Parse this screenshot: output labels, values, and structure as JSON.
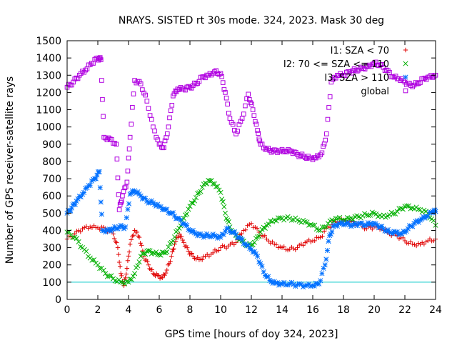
{
  "chart_data": {
    "type": "scatter",
    "title": "NRAYS. SISTED rt 30s mode. 324, 2023. Mask 30 deg",
    "xlabel": "GPS time [hours of doy 324, 2023]",
    "ylabel": "Number of GPS receiver-satellite rays",
    "xlim": [
      0,
      24
    ],
    "ylim": [
      0,
      1500
    ],
    "x_ticks": [
      0,
      2,
      4,
      6,
      8,
      10,
      12,
      14,
      16,
      18,
      20,
      22,
      24
    ],
    "y_ticks": [
      0,
      100,
      200,
      300,
      400,
      500,
      600,
      700,
      800,
      900,
      1000,
      1100,
      1200,
      1300,
      1400,
      1500
    ],
    "reference_line": {
      "y": 100,
      "color": "#00c8c8"
    },
    "series": [
      {
        "name": "I1: SZA < 70",
        "marker": "+",
        "color": "#e00000",
        "points": [
          [
            0,
            350
          ],
          [
            0.5,
            380
          ],
          [
            1,
            410
          ],
          [
            1.5,
            420
          ],
          [
            2,
            415
          ],
          [
            2.5,
            410
          ],
          [
            3,
            380
          ],
          [
            3.3,
            300
          ],
          [
            3.5,
            150
          ],
          [
            3.7,
            80
          ],
          [
            3.9,
            180
          ],
          [
            4.1,
            320
          ],
          [
            4.4,
            400
          ],
          [
            4.7,
            360
          ],
          [
            5,
            250
          ],
          [
            5.3,
            200
          ],
          [
            5.6,
            150
          ],
          [
            5.9,
            140
          ],
          [
            6.2,
            125
          ],
          [
            6.5,
            170
          ],
          [
            6.8,
            250
          ],
          [
            7,
            320
          ],
          [
            7.3,
            380
          ],
          [
            7.6,
            330
          ],
          [
            7.9,
            280
          ],
          [
            8.2,
            250
          ],
          [
            8.6,
            230
          ],
          [
            9,
            250
          ],
          [
            9.5,
            270
          ],
          [
            10,
            300
          ],
          [
            10.5,
            310
          ],
          [
            11,
            330
          ],
          [
            11.5,
            400
          ],
          [
            12,
            440
          ],
          [
            12.5,
            390
          ],
          [
            13,
            350
          ],
          [
            13.5,
            320
          ],
          [
            14,
            300
          ],
          [
            14.5,
            290
          ],
          [
            15,
            300
          ],
          [
            15.5,
            330
          ],
          [
            16,
            340
          ],
          [
            16.5,
            360
          ],
          [
            17,
            420
          ],
          [
            17.5,
            450
          ],
          [
            18,
            460
          ],
          [
            18.5,
            450
          ],
          [
            19,
            440
          ],
          [
            19.5,
            410
          ],
          [
            20,
            420
          ],
          [
            20.5,
            410
          ],
          [
            21,
            380
          ],
          [
            21.5,
            370
          ],
          [
            22,
            340
          ],
          [
            22.5,
            320
          ],
          [
            23,
            320
          ],
          [
            23.5,
            340
          ],
          [
            24,
            350
          ]
        ]
      },
      {
        "name": "I2: 70 <= SZA <= 110",
        "marker": "x",
        "color": "#00b000",
        "points": [
          [
            0,
            390
          ],
          [
            0.5,
            360
          ],
          [
            1,
            300
          ],
          [
            1.5,
            240
          ],
          [
            2,
            200
          ],
          [
            2.5,
            150
          ],
          [
            3,
            120
          ],
          [
            3.5,
            100
          ],
          [
            4,
            100
          ],
          [
            4.4,
            150
          ],
          [
            4.8,
            250
          ],
          [
            5.2,
            280
          ],
          [
            5.6,
            270
          ],
          [
            6,
            260
          ],
          [
            6.4,
            270
          ],
          [
            6.8,
            330
          ],
          [
            7.2,
            400
          ],
          [
            7.6,
            470
          ],
          [
            8,
            540
          ],
          [
            8.4,
            590
          ],
          [
            8.8,
            650
          ],
          [
            9.2,
            690
          ],
          [
            9.6,
            670
          ],
          [
            10,
            620
          ],
          [
            10.3,
            500
          ],
          [
            10.6,
            420
          ],
          [
            11,
            370
          ],
          [
            11.4,
            340
          ],
          [
            11.8,
            310
          ],
          [
            12.2,
            330
          ],
          [
            12.6,
            390
          ],
          [
            13,
            430
          ],
          [
            13.5,
            460
          ],
          [
            14,
            470
          ],
          [
            14.5,
            470
          ],
          [
            15,
            460
          ],
          [
            15.5,
            450
          ],
          [
            16,
            430
          ],
          [
            16.5,
            400
          ],
          [
            17,
            440
          ],
          [
            17.5,
            470
          ],
          [
            18,
            460
          ],
          [
            18.5,
            470
          ],
          [
            19,
            480
          ],
          [
            19.5,
            490
          ],
          [
            20,
            500
          ],
          [
            20.5,
            480
          ],
          [
            21,
            490
          ],
          [
            21.5,
            510
          ],
          [
            22,
            540
          ],
          [
            22.5,
            530
          ],
          [
            23,
            520
          ],
          [
            23.5,
            500
          ],
          [
            24,
            430
          ]
        ]
      },
      {
        "name": "I3: SZA > 110",
        "marker": "*",
        "color": "#0070ff",
        "points": [
          [
            0,
            500
          ],
          [
            0.3,
            530
          ],
          [
            0.6,
            570
          ],
          [
            1,
            610
          ],
          [
            1.4,
            660
          ],
          [
            1.8,
            700
          ],
          [
            2.1,
            740
          ],
          [
            2.3,
            400
          ],
          [
            2.7,
            400
          ],
          [
            3,
            410
          ],
          [
            3.4,
            420
          ],
          [
            3.8,
            420
          ],
          [
            4.1,
            610
          ],
          [
            4.4,
            630
          ],
          [
            4.8,
            600
          ],
          [
            5.2,
            570
          ],
          [
            5.6,
            560
          ],
          [
            6,
            540
          ],
          [
            6.4,
            520
          ],
          [
            6.8,
            500
          ],
          [
            7.2,
            470
          ],
          [
            7.6,
            440
          ],
          [
            8,
            400
          ],
          [
            8.4,
            380
          ],
          [
            8.8,
            370
          ],
          [
            9.2,
            370
          ],
          [
            9.6,
            370
          ],
          [
            10,
            360
          ],
          [
            10.4,
            410
          ],
          [
            10.8,
            390
          ],
          [
            11.2,
            360
          ],
          [
            11.6,
            320
          ],
          [
            12,
            290
          ],
          [
            12.4,
            250
          ],
          [
            12.8,
            160
          ],
          [
            13.2,
            110
          ],
          [
            13.6,
            95
          ],
          [
            14,
            90
          ],
          [
            14.5,
            90
          ],
          [
            15,
            85
          ],
          [
            15.5,
            80
          ],
          [
            16,
            80
          ],
          [
            16.4,
            90
          ],
          [
            16.8,
            200
          ],
          [
            17.1,
            370
          ],
          [
            17.4,
            430
          ],
          [
            17.8,
            440
          ],
          [
            18.2,
            440
          ],
          [
            18.6,
            430
          ],
          [
            19,
            440
          ],
          [
            19.4,
            430
          ],
          [
            19.8,
            440
          ],
          [
            20.2,
            430
          ],
          [
            20.6,
            410
          ],
          [
            21,
            390
          ],
          [
            21.4,
            390
          ],
          [
            21.8,
            380
          ],
          [
            22.2,
            410
          ],
          [
            22.6,
            440
          ],
          [
            23,
            460
          ],
          [
            23.4,
            480
          ],
          [
            23.8,
            510
          ],
          [
            24,
            510
          ]
        ]
      },
      {
        "name": "global",
        "marker": "square",
        "color": "#b000e0",
        "points": [
          [
            0,
            1230
          ],
          [
            0.4,
            1260
          ],
          [
            0.8,
            1300
          ],
          [
            1.2,
            1330
          ],
          [
            1.6,
            1370
          ],
          [
            2,
            1400
          ],
          [
            2.2,
            1390
          ],
          [
            2.4,
            940
          ],
          [
            2.8,
            930
          ],
          [
            3.2,
            900
          ],
          [
            3.4,
            520
          ],
          [
            3.6,
            600
          ],
          [
            3.9,
            680
          ],
          [
            4.1,
            940
          ],
          [
            4.4,
            1270
          ],
          [
            4.8,
            1250
          ],
          [
            5.2,
            1150
          ],
          [
            5.6,
            1000
          ],
          [
            6,
            900
          ],
          [
            6.3,
            880
          ],
          [
            6.6,
            1000
          ],
          [
            6.9,
            1180
          ],
          [
            7.2,
            1220
          ],
          [
            7.6,
            1220
          ],
          [
            8,
            1230
          ],
          [
            8.4,
            1250
          ],
          [
            8.8,
            1290
          ],
          [
            9.2,
            1300
          ],
          [
            9.6,
            1320
          ],
          [
            10,
            1310
          ],
          [
            10.3,
            1200
          ],
          [
            10.6,
            1050
          ],
          [
            11,
            960
          ],
          [
            11.4,
            1050
          ],
          [
            11.8,
            1190
          ],
          [
            12.1,
            1100
          ],
          [
            12.4,
            980
          ],
          [
            12.6,
            900
          ],
          [
            13,
            870
          ],
          [
            13.4,
            860
          ],
          [
            13.8,
            860
          ],
          [
            14.2,
            860
          ],
          [
            14.6,
            860
          ],
          [
            15,
            840
          ],
          [
            15.4,
            830
          ],
          [
            15.8,
            820
          ],
          [
            16.2,
            820
          ],
          [
            16.6,
            850
          ],
          [
            16.9,
            960
          ],
          [
            17.2,
            1260
          ],
          [
            17.6,
            1300
          ],
          [
            18,
            1300
          ],
          [
            18.4,
            1320
          ],
          [
            18.8,
            1330
          ],
          [
            19.2,
            1340
          ],
          [
            19.6,
            1350
          ],
          [
            20,
            1370
          ],
          [
            20.4,
            1360
          ],
          [
            20.8,
            1330
          ],
          [
            21.2,
            1290
          ],
          [
            21.6,
            1280
          ],
          [
            22,
            1260
          ],
          [
            22.4,
            1240
          ],
          [
            22.8,
            1250
          ],
          [
            23.2,
            1280
          ],
          [
            23.6,
            1290
          ],
          [
            24,
            1300
          ]
        ]
      }
    ]
  }
}
